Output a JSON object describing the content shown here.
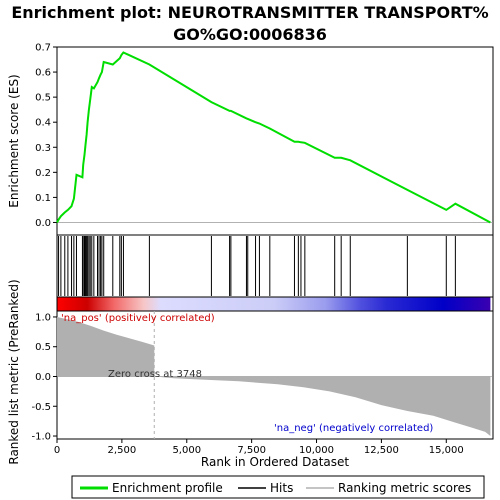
{
  "chart_data": {
    "type": "line",
    "title_line1": "Enrichment plot: NEUROTRANSMITTER TRANSPORT%",
    "title_line2": "GO%GO:0006836",
    "ylabel_top": "Enrichment score (ES)",
    "ylabel_bottom": "Ranked list metric (PreRanked)",
    "xlabel": "Rank in Ordered Dataset",
    "xlim": [
      0,
      16800
    ],
    "ylim_top": [
      -0.05,
      0.7
    ],
    "ylim_bottom": [
      -1.05,
      1.1
    ],
    "x_ticks": [
      0,
      2500,
      5000,
      7500,
      10000,
      12500,
      15000
    ],
    "x_tick_labels": [
      "0",
      "2,500",
      "5,000",
      "7,500",
      "10,000",
      "12,500",
      "15,000"
    ],
    "y_ticks_top": [
      0.0,
      0.1,
      0.2,
      0.3,
      0.4,
      0.5,
      0.6,
      0.7
    ],
    "y_tick_labels_top": [
      "0.0",
      "0.1",
      "0.2",
      "0.3",
      "0.4",
      "0.5",
      "0.6",
      "0.7"
    ],
    "y_ticks_bottom": [
      1.0,
      0.5,
      0.0,
      -0.5,
      -1.0
    ],
    "y_tick_labels_bottom": [
      "1.0",
      "0.5",
      "0.0",
      "-0.5",
      "-1.0"
    ],
    "zero_cross_rank": 3748,
    "zero_cross_label": "Zero cross at 3748",
    "pos_label": "'na_pos' (positively correlated)",
    "neg_label": "'na_neg' (negatively correlated)",
    "hits": [
      60,
      150,
      300,
      420,
      560,
      650,
      750,
      980,
      1010,
      1060,
      1100,
      1140,
      1180,
      1230,
      1280,
      1340,
      1420,
      1560,
      1620,
      1680,
      1730,
      1800,
      2150,
      2420,
      2480,
      2560,
      3560,
      5950,
      6650,
      6700,
      7300,
      7350,
      7650,
      7800,
      8200,
      9150,
      9300,
      9400,
      9550,
      10700,
      10950,
      11300,
      13500,
      15000,
      15350
    ],
    "es_profile": [
      [
        0,
        0.0
      ],
      [
        60,
        0.012
      ],
      [
        150,
        0.025
      ],
      [
        300,
        0.04
      ],
      [
        420,
        0.05
      ],
      [
        560,
        0.065
      ],
      [
        650,
        0.095
      ],
      [
        750,
        0.19
      ],
      [
        980,
        0.18
      ],
      [
        1010,
        0.23
      ],
      [
        1060,
        0.27
      ],
      [
        1100,
        0.31
      ],
      [
        1140,
        0.35
      ],
      [
        1180,
        0.4
      ],
      [
        1230,
        0.45
      ],
      [
        1280,
        0.49
      ],
      [
        1340,
        0.54
      ],
      [
        1420,
        0.535
      ],
      [
        1560,
        0.56
      ],
      [
        1620,
        0.575
      ],
      [
        1680,
        0.59
      ],
      [
        1730,
        0.6
      ],
      [
        1800,
        0.64
      ],
      [
        2150,
        0.63
      ],
      [
        2420,
        0.655
      ],
      [
        2480,
        0.668
      ],
      [
        2560,
        0.678
      ],
      [
        3560,
        0.63
      ],
      [
        5950,
        0.48
      ],
      [
        6650,
        0.445
      ],
      [
        6700,
        0.445
      ],
      [
        7300,
        0.415
      ],
      [
        7350,
        0.413
      ],
      [
        7650,
        0.4
      ],
      [
        7800,
        0.395
      ],
      [
        8200,
        0.375
      ],
      [
        9150,
        0.322
      ],
      [
        9300,
        0.322
      ],
      [
        9400,
        0.32
      ],
      [
        9550,
        0.318
      ],
      [
        10700,
        0.258
      ],
      [
        10950,
        0.258
      ],
      [
        11300,
        0.248
      ],
      [
        13500,
        0.13
      ],
      [
        15000,
        0.05
      ],
      [
        15350,
        0.075
      ],
      [
        16700,
        0.0
      ]
    ],
    "metric_profile": [
      [
        0,
        1.0
      ],
      [
        300,
        0.97
      ],
      [
        800,
        0.92
      ],
      [
        1300,
        0.85
      ],
      [
        1800,
        0.77
      ],
      [
        2300,
        0.7
      ],
      [
        2800,
        0.64
      ],
      [
        3300,
        0.58
      ],
      [
        3748,
        0.52
      ],
      [
        3749,
        0.0
      ],
      [
        4500,
        -0.03
      ],
      [
        5500,
        -0.05
      ],
      [
        7000,
        -0.08
      ],
      [
        8500,
        -0.13
      ],
      [
        9500,
        -0.18
      ],
      [
        10500,
        -0.25
      ],
      [
        11500,
        -0.35
      ],
      [
        12500,
        -0.48
      ],
      [
        13500,
        -0.58
      ],
      [
        14500,
        -0.66
      ],
      [
        15300,
        -0.77
      ],
      [
        16000,
        -0.86
      ],
      [
        16500,
        -0.93
      ],
      [
        16700,
        -1.0
      ]
    ],
    "heat_stops": [
      {
        "at": 0.0,
        "color": "#ff0000"
      },
      {
        "at": 0.07,
        "color": "#cc0000"
      },
      {
        "at": 0.13,
        "color": "#f26666"
      },
      {
        "at": 0.2,
        "color": "#f7c6c6"
      },
      {
        "at": 0.24,
        "color": "#dcdcff"
      },
      {
        "at": 0.5,
        "color": "#cccdf7"
      },
      {
        "at": 0.62,
        "color": "#9a9cee"
      },
      {
        "at": 0.7,
        "color": "#5050de"
      },
      {
        "at": 0.76,
        "color": "#2a2ad4"
      },
      {
        "at": 0.89,
        "color": "#0000c8"
      },
      {
        "at": 1.0,
        "color": "#3a00b0"
      }
    ],
    "legend": [
      "Enrichment profile",
      "Hits",
      "Ranking metric scores"
    ],
    "colors": {
      "es_line": "#00dd00",
      "hit": "#000000",
      "metric_fill": "#b0b0b0",
      "pos_text": "#cc0000",
      "neg_text": "#0000cc",
      "zero_line": "#b0b0b0"
    }
  }
}
